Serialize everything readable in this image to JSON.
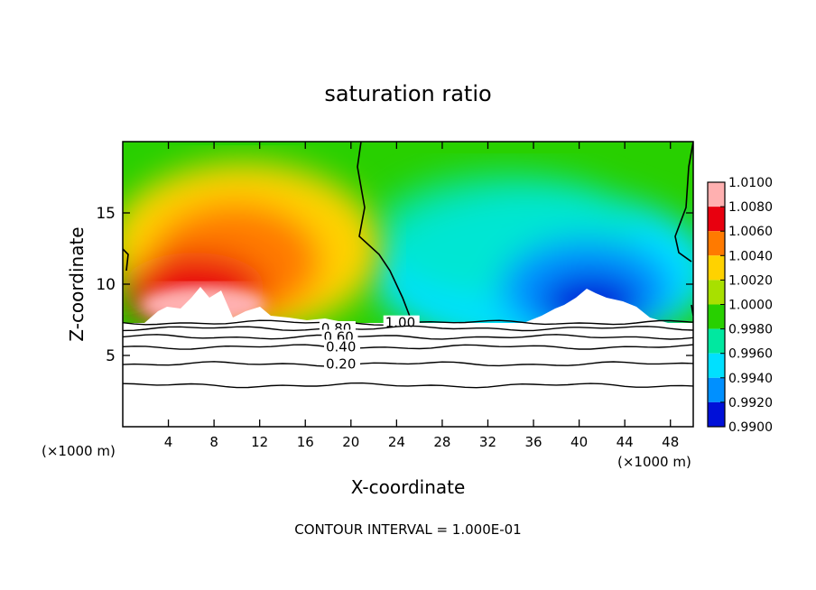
{
  "chart_data": {
    "type": "heatmap",
    "title": "saturation ratio",
    "xlabel": "X-coordinate",
    "ylabel": "Z-coordinate",
    "x_unit_left": "(×1000 m)",
    "x_unit_right": "(×1000 m)",
    "footer": "CONTOUR INTERVAL = 1.000E-01",
    "xlim": [
      0,
      50
    ],
    "ylim": [
      0,
      20
    ],
    "x_ticks": [
      4,
      8,
      12,
      16,
      20,
      24,
      28,
      32,
      36,
      40,
      44,
      48
    ],
    "y_ticks": [
      5,
      10,
      15
    ],
    "grid": false,
    "colorbar": {
      "levels": [
        "1.0100",
        "1.0080",
        "1.0060",
        "1.0040",
        "1.0020",
        "1.0000",
        "0.9980",
        "0.9960",
        "0.9940",
        "0.9920",
        "0.9900"
      ],
      "colors": [
        "#ffb0b0",
        "#e8000f",
        "#ff7a00",
        "#ffd200",
        "#a8e000",
        "#28d000",
        "#00e8a0",
        "#00e0ff",
        "#0090ff",
        "#0010d8",
        "#600090"
      ]
    },
    "cloud_base_z": 7.3,
    "contour_lines": [
      {
        "label": "1.00",
        "z": 7.3,
        "label_x": 23.0
      },
      {
        "label": "0.80",
        "z": 6.9,
        "label_x": 17.4
      },
      {
        "label": "0.60",
        "z": 6.3,
        "label_x": 17.6
      },
      {
        "label": "0.40",
        "z": 5.6,
        "label_x": 17.8
      },
      {
        "label": "0.20",
        "z": 4.4,
        "label_x": 17.8
      },
      {
        "label": "",
        "z": 2.9
      }
    ],
    "field_regions": [
      {
        "name": "supersaturated",
        "x_range": [
          0,
          24
        ],
        "z_peak": 16,
        "max_value": 1.008
      },
      {
        "name": "subsaturated",
        "x_range": [
          25,
          50
        ],
        "z_peak": 16,
        "min_value": 0.991
      }
    ]
  }
}
